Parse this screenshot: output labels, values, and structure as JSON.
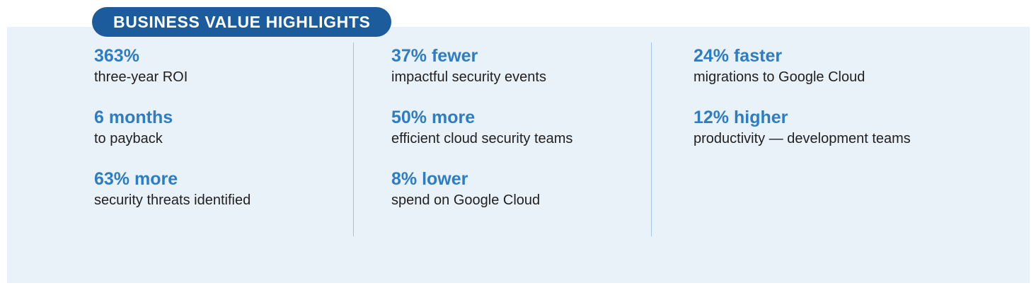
{
  "header": {
    "title": "BUSINESS VALUE HIGHLIGHTS"
  },
  "colors": {
    "badge_background": "#1c5c9c",
    "badge_text": "#ffffff",
    "panel_background": "#e9f1f9",
    "stat_accent": "#2e7dc2",
    "label_text": "#212121",
    "divider": "#9fc6e8"
  },
  "columns": [
    {
      "items": [
        {
          "value": "363%",
          "label": "three-year ROI"
        },
        {
          "value": "6 months",
          "label": "to payback"
        },
        {
          "value": "63% more",
          "label": "security threats identified"
        }
      ]
    },
    {
      "items": [
        {
          "value": "37% fewer",
          "label": "impactful security events"
        },
        {
          "value": "50% more",
          "label": "efficient cloud security teams"
        },
        {
          "value": "8% lower",
          "label": "spend on Google Cloud"
        }
      ]
    },
    {
      "items": [
        {
          "value": "24% faster",
          "label": "migrations to Google Cloud"
        },
        {
          "value": "12% higher",
          "label": "productivity — development teams"
        }
      ]
    }
  ]
}
